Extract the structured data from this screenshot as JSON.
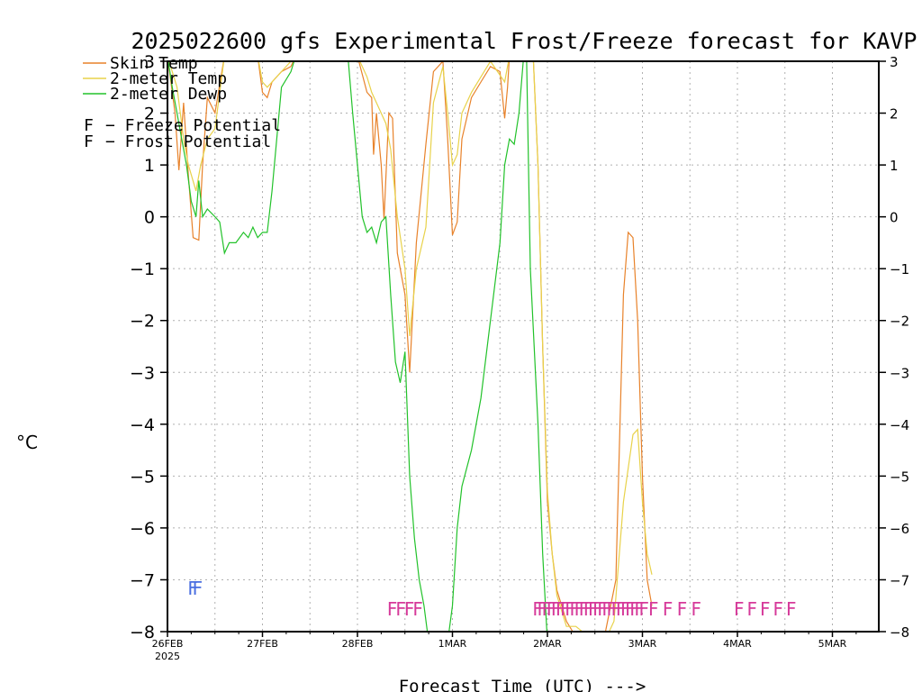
{
  "chart_data": {
    "type": "line",
    "title": "2025022600 gfs Experimental Frost/Freeze forecast for KAVP",
    "ylabel": "°C",
    "xlabel": "Forecast Time (UTC) --->",
    "ylim": [
      -8,
      3
    ],
    "xlim": [
      0,
      7.5
    ],
    "grid": true,
    "y_ticks": [
      "−8",
      "−7",
      "−6",
      "−5",
      "−4",
      "−3",
      "−2",
      "−1",
      "0",
      "1",
      "2",
      "3"
    ],
    "y_tick_values": [
      -8,
      -7,
      -6,
      -5,
      -4,
      -3,
      -2,
      -1,
      0,
      1,
      2,
      3
    ],
    "x_ticks": [
      {
        "label": "26FEB",
        "sub": "2025",
        "value": 0
      },
      {
        "label": "27FEB",
        "sub": "",
        "value": 1
      },
      {
        "label": "28FEB",
        "sub": "",
        "value": 2
      },
      {
        "label": "1MAR",
        "sub": "",
        "value": 3
      },
      {
        "label": "2MAR",
        "sub": "",
        "value": 4
      },
      {
        "label": "3MAR",
        "sub": "",
        "value": 5
      },
      {
        "label": "4MAR",
        "sub": "",
        "value": 6
      },
      {
        "label": "5MAR",
        "sub": "",
        "value": 7
      }
    ],
    "series": [
      {
        "name": "Skin Temp",
        "color": "#e8822a",
        "points": [
          [
            0,
            3.1
          ],
          [
            0.08,
            2.0
          ],
          [
            0.12,
            0.9
          ],
          [
            0.17,
            2.2
          ],
          [
            0.22,
            0.8
          ],
          [
            0.27,
            -0.4
          ],
          [
            0.33,
            -0.45
          ],
          [
            0.37,
            1.0
          ],
          [
            0.42,
            2.3
          ],
          [
            0.5,
            2.0
          ],
          [
            0.6,
            3.1
          ],
          [
            0.95,
            3.1
          ],
          [
            1.0,
            2.4
          ],
          [
            1.05,
            2.3
          ],
          [
            1.1,
            2.6
          ],
          [
            1.2,
            2.8
          ],
          [
            1.3,
            2.9
          ],
          [
            1.35,
            3.1
          ],
          [
            2.0,
            3.1
          ],
          [
            2.1,
            2.4
          ],
          [
            2.15,
            2.3
          ],
          [
            2.17,
            1.2
          ],
          [
            2.2,
            2.0
          ],
          [
            2.25,
            1.0
          ],
          [
            2.28,
            -0.05
          ],
          [
            2.33,
            2.0
          ],
          [
            2.37,
            1.9
          ],
          [
            2.42,
            -0.7
          ],
          [
            2.5,
            -1.5
          ],
          [
            2.55,
            -3.0
          ],
          [
            2.62,
            -0.5
          ],
          [
            2.72,
            1.4
          ],
          [
            2.8,
            2.8
          ],
          [
            2.9,
            3.0
          ],
          [
            2.95,
            1.5
          ],
          [
            3.0,
            -0.35
          ],
          [
            3.05,
            -0.1
          ],
          [
            3.1,
            1.5
          ],
          [
            3.2,
            2.3
          ],
          [
            3.3,
            2.6
          ],
          [
            3.4,
            2.9
          ],
          [
            3.5,
            2.8
          ],
          [
            3.55,
            1.9
          ],
          [
            3.58,
            2.5
          ],
          [
            3.6,
            3.1
          ],
          [
            3.85,
            3.1
          ],
          [
            3.9,
            1.0
          ],
          [
            3.95,
            -2.5
          ],
          [
            4.0,
            -5.5
          ],
          [
            4.05,
            -6.5
          ],
          [
            4.1,
            -7.2
          ],
          [
            4.15,
            -7.5
          ],
          [
            4.2,
            -7.8
          ],
          [
            4.3,
            -8.1
          ],
          [
            4.5,
            -8.1
          ],
          [
            4.6,
            -8.1
          ],
          [
            4.72,
            -7.0
          ],
          [
            4.8,
            -1.5
          ],
          [
            4.85,
            -0.3
          ],
          [
            4.9,
            -0.4
          ],
          [
            4.95,
            -2.0
          ],
          [
            5.0,
            -5.0
          ],
          [
            5.05,
            -7.0
          ],
          [
            5.1,
            -7.5
          ]
        ]
      },
      {
        "name": "2-meter Temp",
        "color": "#e8d24a",
        "points": [
          [
            0,
            3.1
          ],
          [
            0.1,
            2.5
          ],
          [
            0.17,
            1.5
          ],
          [
            0.22,
            1.0
          ],
          [
            0.3,
            0.5
          ],
          [
            0.35,
            1.0
          ],
          [
            0.42,
            1.5
          ],
          [
            0.5,
            1.7
          ],
          [
            0.6,
            3.1
          ],
          [
            0.95,
            3.1
          ],
          [
            1.0,
            2.6
          ],
          [
            1.05,
            2.5
          ],
          [
            1.1,
            2.6
          ],
          [
            1.2,
            2.8
          ],
          [
            1.35,
            3.1
          ],
          [
            2.0,
            3.1
          ],
          [
            2.1,
            2.7
          ],
          [
            2.15,
            2.4
          ],
          [
            2.2,
            2.2
          ],
          [
            2.3,
            1.8
          ],
          [
            2.35,
            1.3
          ],
          [
            2.42,
            0.0
          ],
          [
            2.5,
            -1.0
          ],
          [
            2.55,
            -2.3
          ],
          [
            2.62,
            -1.0
          ],
          [
            2.72,
            -0.2
          ],
          [
            2.8,
            2.2
          ],
          [
            2.9,
            2.9
          ],
          [
            2.95,
            2.0
          ],
          [
            3.0,
            1.0
          ],
          [
            3.05,
            1.2
          ],
          [
            3.1,
            2.0
          ],
          [
            3.2,
            2.4
          ],
          [
            3.3,
            2.7
          ],
          [
            3.4,
            3.0
          ],
          [
            3.55,
            2.6
          ],
          [
            3.6,
            3.1
          ],
          [
            3.85,
            3.1
          ],
          [
            3.9,
            1.0
          ],
          [
            3.95,
            -2.5
          ],
          [
            4.0,
            -5.3
          ],
          [
            4.05,
            -6.5
          ],
          [
            4.1,
            -7.3
          ],
          [
            4.15,
            -7.6
          ],
          [
            4.2,
            -7.9
          ],
          [
            4.3,
            -7.9
          ],
          [
            4.5,
            -8.2
          ],
          [
            4.6,
            -8.2
          ],
          [
            4.7,
            -7.8
          ],
          [
            4.8,
            -5.5
          ],
          [
            4.9,
            -4.2
          ],
          [
            4.95,
            -4.1
          ],
          [
            5.0,
            -5.5
          ],
          [
            5.05,
            -6.5
          ],
          [
            5.1,
            -6.9
          ]
        ]
      },
      {
        "name": "2-meter Dewp",
        "color": "#22c22a",
        "points": [
          [
            0,
            3.1
          ],
          [
            0.05,
            2.5
          ],
          [
            0.1,
            2.0
          ],
          [
            0.15,
            1.5
          ],
          [
            0.2,
            1.0
          ],
          [
            0.25,
            0.3
          ],
          [
            0.3,
            0.0
          ],
          [
            0.33,
            0.7
          ],
          [
            0.37,
            0.0
          ],
          [
            0.42,
            0.15
          ],
          [
            0.5,
            0.0
          ],
          [
            0.55,
            -0.1
          ],
          [
            0.6,
            -0.7
          ],
          [
            0.65,
            -0.5
          ],
          [
            0.72,
            -0.5
          ],
          [
            0.8,
            -0.3
          ],
          [
            0.85,
            -0.4
          ],
          [
            0.9,
            -0.2
          ],
          [
            0.95,
            -0.4
          ],
          [
            1.0,
            -0.3
          ],
          [
            1.05,
            -0.3
          ],
          [
            1.1,
            0.5
          ],
          [
            1.2,
            2.5
          ],
          [
            1.3,
            2.8
          ],
          [
            1.35,
            3.1
          ],
          [
            1.9,
            3.1
          ],
          [
            1.95,
            2.0
          ],
          [
            2.0,
            1.0
          ],
          [
            2.05,
            0.0
          ],
          [
            2.1,
            -0.3
          ],
          [
            2.15,
            -0.2
          ],
          [
            2.2,
            -0.5
          ],
          [
            2.25,
            -0.1
          ],
          [
            2.3,
            0.0
          ],
          [
            2.35,
            -1.5
          ],
          [
            2.4,
            -2.8
          ],
          [
            2.45,
            -3.2
          ],
          [
            2.5,
            -2.6
          ],
          [
            2.55,
            -5.0
          ],
          [
            2.6,
            -6.2
          ],
          [
            2.65,
            -7.0
          ],
          [
            2.7,
            -7.5
          ],
          [
            2.75,
            -8.2
          ],
          [
            2.95,
            -8.2
          ],
          [
            3.0,
            -7.5
          ],
          [
            3.05,
            -6.0
          ],
          [
            3.1,
            -5.2
          ],
          [
            3.2,
            -4.5
          ],
          [
            3.3,
            -3.5
          ],
          [
            3.4,
            -2.0
          ],
          [
            3.5,
            -0.5
          ],
          [
            3.55,
            1.0
          ],
          [
            3.6,
            1.5
          ],
          [
            3.65,
            1.4
          ],
          [
            3.7,
            2.0
          ],
          [
            3.75,
            3.1
          ],
          [
            3.78,
            3.1
          ],
          [
            3.82,
            -1.0
          ],
          [
            3.9,
            -4.0
          ],
          [
            3.95,
            -6.5
          ],
          [
            4.0,
            -8.2
          ]
        ]
      }
    ],
    "frost_marks": {
      "symbol": "F",
      "color": "#4a6ee0",
      "x": [
        0.25,
        0.3
      ],
      "y": -7.15
    },
    "freeze_marks": {
      "symbol": "F",
      "color": "#d63a9a",
      "groups": [
        {
          "x_start": 2.35,
          "x_end": 2.62,
          "count": 4,
          "y": -7.55,
          "tight": true
        },
        {
          "x_start": 3.88,
          "x_end": 5.0,
          "count": 24,
          "y": -7.55,
          "tight": true
        },
        {
          "x_start": 5.1,
          "x_end": 5.55,
          "count": 4,
          "y": -7.55,
          "tight": false
        },
        {
          "x_start": 6.0,
          "x_end": 6.55,
          "count": 5,
          "y": -7.55,
          "tight": false
        }
      ]
    },
    "legend": {
      "placement": "top-left",
      "lines": [
        {
          "label": "Skin Temp",
          "color": "#e8822a"
        },
        {
          "label": "2-meter Temp",
          "color": "#e8d24a"
        },
        {
          "label": "2-meter Dewp",
          "color": "#22c22a"
        }
      ],
      "marks": [
        {
          "symbol": "F",
          "label": "Freeze Potential",
          "color": "#d63a9a"
        },
        {
          "symbol": "F",
          "label": "Frost Potential",
          "color": "#4a6ee0"
        }
      ]
    }
  }
}
